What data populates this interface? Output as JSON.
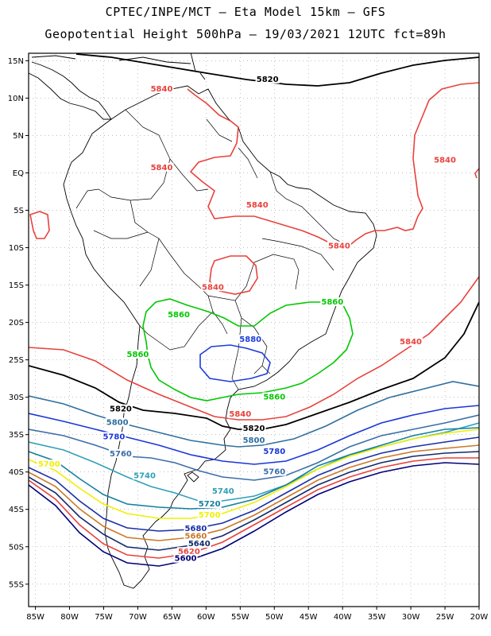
{
  "title": "CPTEC/INPE/MCT –  Eta Model 15km – GFS",
  "subtitle": "Geopotential Height 500hPa – 19/03/2021 12UTC fct=89h",
  "axes": {
    "lat_labels": [
      "15N",
      "10N",
      "5N",
      "EQ",
      "5S",
      "10S",
      "15S",
      "20S",
      "25S",
      "30S",
      "35S",
      "40S",
      "45S",
      "50S",
      "55S"
    ],
    "lon_labels": [
      "85W",
      "80W",
      "75W",
      "70W",
      "65W",
      "60W",
      "55W",
      "50W",
      "45W",
      "40W",
      "35W",
      "30W",
      "25W",
      "20W"
    ],
    "lat_range": [
      -58,
      16
    ],
    "lon_range": [
      -86,
      -20
    ],
    "grid": "dotted"
  },
  "colors": {
    "c5600": "#00007a",
    "c5620": "#e8423c",
    "c5640": "#102a6b",
    "c5660": "#c87a28",
    "c5680": "#1a2fa8",
    "c5700": "#f0f000",
    "c5720": "#1480a0",
    "c5740": "#30a0b8",
    "c5760": "#3a6ea8",
    "c5780": "#1a36d8",
    "c5800": "#306f9e",
    "c5820": "#000000",
    "c5840": "#e8423c",
    "c5860": "#00c800",
    "c5880": "#1e3cdc",
    "coast": "#000000"
  },
  "contour_labels": [
    {
      "text": "5820",
      "color": "c5820",
      "lon": -51.0,
      "lat": 12.3
    },
    {
      "text": "5840",
      "color": "c5840",
      "lon": -66.5,
      "lat": 11.0
    },
    {
      "text": "5840",
      "color": "c5840",
      "lon": -66.5,
      "lat": 0.5
    },
    {
      "text": "5840",
      "color": "c5840",
      "lon": -25.0,
      "lat": 1.5
    },
    {
      "text": "5840",
      "color": "c5840",
      "lon": -52.5,
      "lat": -4.5
    },
    {
      "text": "5840",
      "color": "c5840",
      "lon": -40.5,
      "lat": -10.0
    },
    {
      "text": "5840",
      "color": "c5840",
      "lon": -59.0,
      "lat": -15.5
    },
    {
      "text": "5840",
      "color": "c5840",
      "lon": -30.0,
      "lat": -22.8
    },
    {
      "text": "5840",
      "color": "c5840",
      "lon": -55.0,
      "lat": -32.5
    },
    {
      "text": "5860",
      "color": "c5860",
      "lon": -41.5,
      "lat": -17.5
    },
    {
      "text": "5860",
      "color": "c5860",
      "lon": -64.0,
      "lat": -19.2
    },
    {
      "text": "5860",
      "color": "c5860",
      "lon": -70.0,
      "lat": -24.5
    },
    {
      "text": "5860",
      "color": "c5860",
      "lon": -50.0,
      "lat": -30.2
    },
    {
      "text": "5880",
      "color": "c5880",
      "lon": -53.5,
      "lat": -22.5
    },
    {
      "text": "5820",
      "color": "c5820",
      "lon": -72.5,
      "lat": -31.8
    },
    {
      "text": "5820",
      "color": "c5820",
      "lon": -53.0,
      "lat": -34.4
    },
    {
      "text": "5800",
      "color": "c5800",
      "lon": -73.0,
      "lat": -33.6
    },
    {
      "text": "5800",
      "color": "c5800",
      "lon": -53.0,
      "lat": -36.0
    },
    {
      "text": "5780",
      "color": "c5780",
      "lon": -73.5,
      "lat": -35.5
    },
    {
      "text": "5780",
      "color": "c5780",
      "lon": -50.0,
      "lat": -37.5
    },
    {
      "text": "5760",
      "color": "c5760",
      "lon": -72.5,
      "lat": -37.8
    },
    {
      "text": "5760",
      "color": "c5760",
      "lon": -50.0,
      "lat": -40.2
    },
    {
      "text": "5740",
      "color": "c5740",
      "lon": -69.0,
      "lat": -40.7
    },
    {
      "text": "5740",
      "color": "c5740",
      "lon": -57.5,
      "lat": -42.8
    },
    {
      "text": "5720",
      "color": "c5720",
      "lon": -59.5,
      "lat": -44.5
    },
    {
      "text": "5700",
      "color": "c5700",
      "lon": -83.0,
      "lat": -39.2
    },
    {
      "text": "5700",
      "color": "c5700",
      "lon": -59.5,
      "lat": -46.0
    },
    {
      "text": "5680",
      "color": "c5680",
      "lon": -61.5,
      "lat": -47.8
    },
    {
      "text": "5660",
      "color": "c5660",
      "lon": -61.5,
      "lat": -48.8
    },
    {
      "text": "5640",
      "color": "c5640",
      "lon": -61.0,
      "lat": -49.8
    },
    {
      "text": "5620",
      "color": "c5620",
      "lon": -62.5,
      "lat": -50.9
    },
    {
      "text": "5600",
      "color": "c5600",
      "lon": -63.0,
      "lat": -51.8
    }
  ]
}
